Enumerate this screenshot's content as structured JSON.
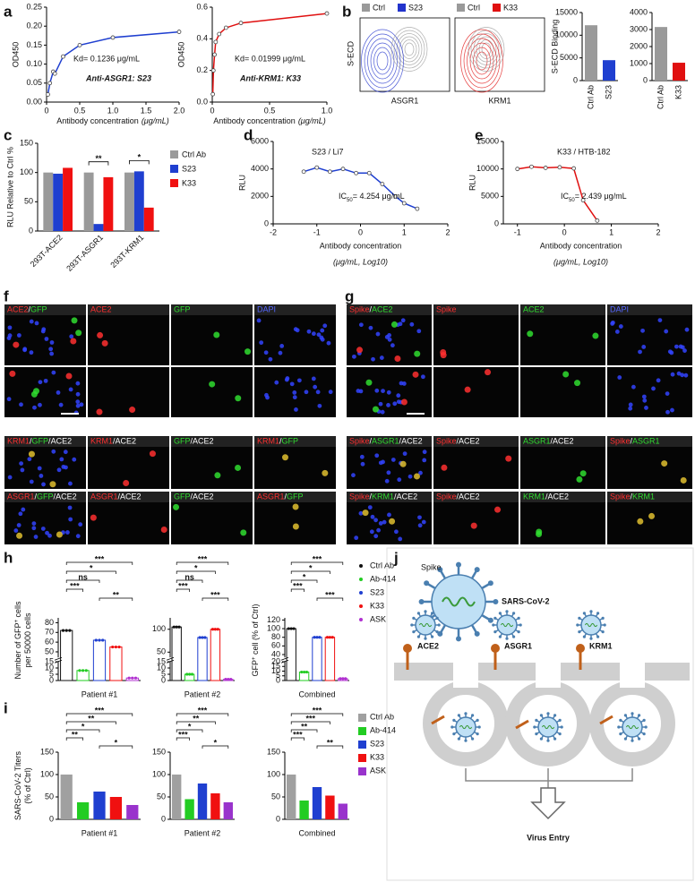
{
  "panels": {
    "a": {
      "label": "a",
      "charts": [
        {
          "type": "line",
          "ylabel": "OD450",
          "xlabel": "Antibody concentration",
          "xunit": "(μg/mL)",
          "annotation": "Kd= 0.1236 μg/mL",
          "title": "Anti-ASGR1: S23",
          "color": "#1f3fd0",
          "x": [
            0.02,
            0.05,
            0.1,
            0.125,
            0.25,
            0.5,
            1,
            2
          ],
          "values": [
            0.02,
            0.05,
            0.08,
            0.075,
            0.12,
            0.15,
            0.17,
            0.185
          ],
          "xlim": [
            0,
            2
          ],
          "ylim": [
            0,
            0.25
          ],
          "xticks": [
            0,
            0.5,
            {
              "value": 1,
              "label": "1.0"
            },
            1.5,
            {
              "value": 2,
              "label": "2.0"
            }
          ],
          "yticks": [
            {
              "value": 0,
              "label": "0.00"
            },
            0.05,
            {
              "value": 0.1,
              "label": "0.10"
            },
            0.15,
            {
              "value": 0.2,
              "label": "0.20"
            },
            0.25
          ]
        },
        {
          "type": "line",
          "ylabel": "OD450",
          "xlabel": "Antibody concentration",
          "xunit": "(μg/mL)",
          "annotation": "Kd= 0.01999 μg/mL",
          "title": "Anti-KRM1: K33",
          "color": "#e01010",
          "x": [
            0.005,
            0.01,
            0.02,
            0.03,
            0.06,
            0.12,
            0.25,
            1
          ],
          "values": [
            0.05,
            0.2,
            0.3,
            0.38,
            0.43,
            0.47,
            0.5,
            0.56
          ],
          "xlim": [
            0,
            1
          ],
          "ylim": [
            0,
            0.6
          ],
          "xticks": [
            0,
            0.5,
            {
              "value": 1,
              "label": "1.0"
            }
          ],
          "yticks": [
            {
              "value": 0,
              "label": "0.0"
            },
            0.2,
            0.4,
            0.6
          ]
        }
      ]
    },
    "b": {
      "label": "b",
      "flow": {
        "ylabel": "S-ECD",
        "plots": [
          {
            "legend": [
              "Ctrl",
              "S23"
            ],
            "colors": [
              "#9a9a9a",
              "#2233cc"
            ],
            "xlabel": "ASGR1"
          },
          {
            "legend": [
              "Ctrl",
              "K33"
            ],
            "colors": [
              "#9a9a9a",
              "#e01010"
            ],
            "xlabel": "KRM1"
          }
        ]
      },
      "charts": [
        {
          "type": "bar",
          "ylabel": "S-ECD Binding",
          "categories": [
            "Ctrl Ab",
            "S23"
          ],
          "values": [
            12200,
            4500
          ],
          "colors": [
            "#9a9a9a",
            "#1f3fd0"
          ],
          "ylim": [
            0,
            15000
          ],
          "yticks": [
            0,
            5000,
            10000,
            15000
          ]
        },
        {
          "type": "bar",
          "categories": [
            "Ctrl Ab",
            "K33"
          ],
          "values": [
            3150,
            1050
          ],
          "colors": [
            "#9a9a9a",
            "#e01010"
          ],
          "ylim": [
            0,
            4000
          ],
          "yticks": [
            0,
            1000,
            2000,
            3000,
            4000
          ]
        }
      ]
    },
    "c": {
      "label": "c",
      "charts": [
        {
          "type": "grouped",
          "ylabel": "RLU Relative to Ctrl %",
          "categories": [
            "293T-ACE2",
            "293T-ASGR1",
            "293T-KRM1"
          ],
          "series": [
            {
              "name": "Ctrl Ab",
              "color": "#9a9a9a",
              "values": [
                100,
                100,
                100
              ]
            },
            {
              "name": "S23",
              "color": "#1f3fd0",
              "values": [
                98,
                12,
                102
              ]
            },
            {
              "name": "K33",
              "color": "#f01010",
              "values": [
                108,
                92,
                40
              ]
            }
          ],
          "ylim": [
            0,
            150
          ],
          "yticks": [
            0,
            50,
            100,
            150
          ],
          "annotations": [
            {
              "text": "**",
              "category": 1
            },
            {
              "text": "*",
              "category": 2
            }
          ]
        }
      ]
    },
    "d": {
      "label": "d",
      "charts": [
        {
          "type": "line",
          "title": "S23 / Li7",
          "ylabel": "RLU",
          "xlabel": "Antibody concentration",
          "xunit": "(μg/mL, Log10)",
          "ic": {
            "main": "IC",
            "sub": "50",
            "rest": "= 4.254 μg/mL"
          },
          "color": "#1f3fd0",
          "x": [
            -1.3,
            -1,
            -0.7,
            -0.4,
            -0.1,
            0.2,
            0.5,
            0.8,
            1,
            1.3
          ],
          "values": [
            3800,
            4100,
            3800,
            4000,
            3700,
            3700,
            2900,
            2000,
            1500,
            1100
          ],
          "xlim": [
            -2,
            2
          ],
          "ylim": [
            0,
            6000
          ],
          "xticks": [
            -2,
            -1,
            0,
            1,
            2
          ],
          "yticks": [
            0,
            2000,
            4000,
            6000
          ]
        }
      ]
    },
    "e": {
      "label": "e",
      "charts": [
        {
          "type": "line",
          "title": "K33 / HTB-182",
          "ylabel": "RLU",
          "xlabel": "Antibody concentration",
          "xunit": "(μg/mL, Log10)",
          "ic": {
            "main": "IC",
            "sub": "50",
            "rest": "= 2.439 μg/mL"
          },
          "color": "#e01010",
          "x": [
            -1,
            -0.7,
            -0.4,
            -0.1,
            0.2,
            0.4,
            0.7
          ],
          "values": [
            10000,
            10400,
            10200,
            10300,
            10100,
            4300,
            600
          ],
          "xlim": [
            -1.3,
            2
          ],
          "ylim": [
            0,
            15000
          ],
          "xticks": [
            -1,
            0,
            1,
            2
          ],
          "yticks": [
            0,
            5000,
            10000,
            15000
          ]
        }
      ]
    },
    "f": {
      "label": "f",
      "groups": [
        [
          {
            "text": "ACE2/GFP",
            "colors": [
              "#ff3030",
              "#30dd30"
            ]
          },
          {
            "text": "ACE2",
            "colors": [
              "#ff3030"
            ]
          },
          {
            "text": "GFP",
            "colors": [
              "#30dd30"
            ]
          },
          {
            "text": "DAPI",
            "colors": [
              "#5566ff"
            ]
          }
        ],
        [
          {
            "text": "KRM1/GFP/ACE2",
            "colors": [
              "#ff3030",
              "#30dd30",
              "#ffffff"
            ]
          },
          {
            "text": "KRM1/ACE2",
            "colors": [
              "#ff3030",
              "#ffffff"
            ]
          },
          {
            "text": "GFP/ACE2",
            "colors": [
              "#30dd30",
              "#ffffff"
            ]
          },
          {
            "text": "KRM1/GFP",
            "colors": [
              "#ff3030",
              "#30dd30"
            ]
          }
        ],
        [
          {
            "text": "ASGR1/GFP/ACE2",
            "colors": [
              "#ff3030",
              "#30dd30",
              "#ffffff"
            ]
          },
          {
            "text": "ASGR1/ACE2",
            "colors": [
              "#ff3030",
              "#ffffff"
            ]
          },
          {
            "text": "GFP/ACE2",
            "colors": [
              "#30dd30",
              "#ffffff"
            ]
          },
          {
            "text": "ASGR1/GFP",
            "colors": [
              "#ff3030",
              "#30dd30"
            ]
          }
        ]
      ]
    },
    "g": {
      "label": "g",
      "groups": [
        [
          {
            "text": "Spike/ACE2",
            "colors": [
              "#ff3030",
              "#30dd30"
            ]
          },
          {
            "text": "Spike",
            "colors": [
              "#ff3030"
            ]
          },
          {
            "text": "ACE2",
            "colors": [
              "#30dd30"
            ]
          },
          {
            "text": "DAPI",
            "colors": [
              "#5566ff"
            ]
          }
        ],
        [
          {
            "text": "Spike/ASGR1/ACE2",
            "colors": [
              "#ff3030",
              "#30dd30",
              "#ffffff"
            ]
          },
          {
            "text": "Spike/ACE2",
            "colors": [
              "#ff3030",
              "#ffffff"
            ]
          },
          {
            "text": "ASGR1/ACE2",
            "colors": [
              "#30dd30",
              "#ffffff"
            ]
          },
          {
            "text": "Spike/ASGR1",
            "colors": [
              "#ff3030",
              "#30dd30"
            ]
          }
        ],
        [
          {
            "text": "Spike/KRM1/ACE2",
            "colors": [
              "#ff3030",
              "#30dd30",
              "#ffffff"
            ]
          },
          {
            "text": "Spike/ACE2",
            "colors": [
              "#ff3030",
              "#ffffff"
            ]
          },
          {
            "text": "KRM1/ACE2",
            "colors": [
              "#30dd30",
              "#ffffff"
            ]
          },
          {
            "text": "Spike/KRM1",
            "colors": [
              "#ff3030",
              "#30dd30"
            ]
          }
        ]
      ]
    },
    "h": {
      "label": "h",
      "categories": [
        "Ctrl Ab",
        "Ab-414",
        "S23",
        "K33",
        "ASK"
      ],
      "colors": [
        "#111111",
        "#22cc22",
        "#1f3fd0",
        "#f01010",
        "#b030d0"
      ],
      "charts": [
        {
          "type": "dotbar",
          "xlabel": "Patient #1",
          "ylabel": [
            [
              "Number of GFP",
              "+",
              " cells"
            ],
            [
              "per 50000 cells"
            ]
          ],
          "values": [
            72,
            8,
            62,
            55,
            2
          ],
          "ylim": [
            0,
            85
          ],
          "ybreak": [
            15,
            45
          ],
          "yticks": [
            0,
            5,
            10,
            15,
            50,
            60,
            70,
            80
          ],
          "annotations": [
            {
              "text": "***",
              "pair": [
                0,
                4
              ]
            },
            {
              "text": "*",
              "pair": [
                0,
                3
              ]
            },
            {
              "text": "ns",
              "pair": [
                0,
                2
              ]
            },
            {
              "text": "***",
              "pair": [
                0,
                1
              ]
            },
            {
              "text": "**",
              "pair": [
                2,
                4
              ]
            }
          ]
        },
        {
          "type": "dotbar",
          "xlabel": "Patient #2",
          "values": [
            105,
            5,
            82,
            100,
            1
          ],
          "ylim": [
            0,
            125
          ],
          "ybreak": [
            15,
            40
          ],
          "yticks": [
            0,
            5,
            10,
            15,
            50,
            100
          ],
          "annotations": [
            {
              "text": "***",
              "pair": [
                0,
                4
              ]
            },
            {
              "text": "*",
              "pair": [
                0,
                3
              ]
            },
            {
              "text": "ns",
              "pair": [
                0,
                2
              ]
            },
            {
              "text": "***",
              "pair": [
                0,
                1
              ]
            },
            {
              "text": "***",
              "pair": [
                2,
                4
              ]
            }
          ]
        },
        {
          "type": "dotbar",
          "xlabel": "Combined",
          "ylabel": [
            [
              "GFP",
              "+",
              " cell (% of Ctrl)"
            ]
          ],
          "values": [
            100,
            9,
            80,
            80,
            2
          ],
          "ylim": [
            0,
            125
          ],
          "ybreak": [
            20,
            35
          ],
          "yticks": [
            0,
            5,
            10,
            15,
            20,
            40,
            60,
            80,
            100,
            120
          ],
          "annotations": [
            {
              "text": "***",
              "pair": [
                0,
                4
              ]
            },
            {
              "text": "*",
              "pair": [
                0,
                3
              ]
            },
            {
              "text": "*",
              "pair": [
                0,
                2
              ]
            },
            {
              "text": "***",
              "pair": [
                0,
                1
              ]
            },
            {
              "text": "***",
              "pair": [
                2,
                4
              ]
            }
          ]
        }
      ]
    },
    "i": {
      "label": "i",
      "categories": [
        "Ctrl Ab",
        "Ab-414",
        "S23",
        "K33",
        "ASK"
      ],
      "colors": [
        "#a0a0a0",
        "#22cc22",
        "#1f3fd0",
        "#f01010",
        "#9933cc"
      ],
      "charts": [
        {
          "type": "fillbar",
          "xlabel": "Patient #1",
          "ylabel": [
            [
              "SARS-CoV-2 Titers"
            ],
            [
              "(% of Ctrl)"
            ]
          ],
          "values": [
            100,
            38,
            62,
            50,
            32
          ],
          "ylim": [
            0,
            150
          ],
          "yticks": [
            0,
            50,
            100,
            150
          ],
          "annotations": [
            {
              "text": "***",
              "pair": [
                0,
                4
              ]
            },
            {
              "text": "**",
              "pair": [
                0,
                3
              ]
            },
            {
              "text": "*",
              "pair": [
                0,
                2
              ]
            },
            {
              "text": "**",
              "pair": [
                0,
                1
              ]
            },
            {
              "text": "*",
              "pair": [
                2,
                4
              ]
            }
          ]
        },
        {
          "type": "fillbar",
          "xlabel": "Patient #2",
          "values": [
            100,
            45,
            80,
            58,
            38
          ],
          "ylim": [
            0,
            150
          ],
          "yticks": [
            0,
            50,
            100,
            150
          ],
          "annotations": [
            {
              "text": "***",
              "pair": [
                0,
                4
              ]
            },
            {
              "text": "**",
              "pair": [
                0,
                3
              ]
            },
            {
              "text": "*",
              "pair": [
                0,
                2
              ]
            },
            {
              "text": "***",
              "pair": [
                0,
                1
              ]
            },
            {
              "text": "*",
              "pair": [
                2,
                4
              ]
            }
          ]
        },
        {
          "type": "fillbar",
          "xlabel": "Combined",
          "values": [
            100,
            42,
            72,
            53,
            35
          ],
          "ylim": [
            0,
            150
          ],
          "yticks": [
            0,
            50,
            100,
            150
          ],
          "annotations": [
            {
              "text": "***",
              "pair": [
                0,
                4
              ]
            },
            {
              "text": "***",
              "pair": [
                0,
                3
              ]
            },
            {
              "text": "**",
              "pair": [
                0,
                2
              ]
            },
            {
              "text": "***",
              "pair": [
                0,
                1
              ]
            },
            {
              "text": "**",
              "pair": [
                2,
                4
              ]
            }
          ]
        }
      ]
    },
    "j": {
      "label": "j",
      "spike": "Spike",
      "virus": "SARS-CoV-2",
      "receptors": [
        "ACE2",
        "ASGR1",
        "KRM1"
      ],
      "entry": "Virus Entry"
    }
  }
}
